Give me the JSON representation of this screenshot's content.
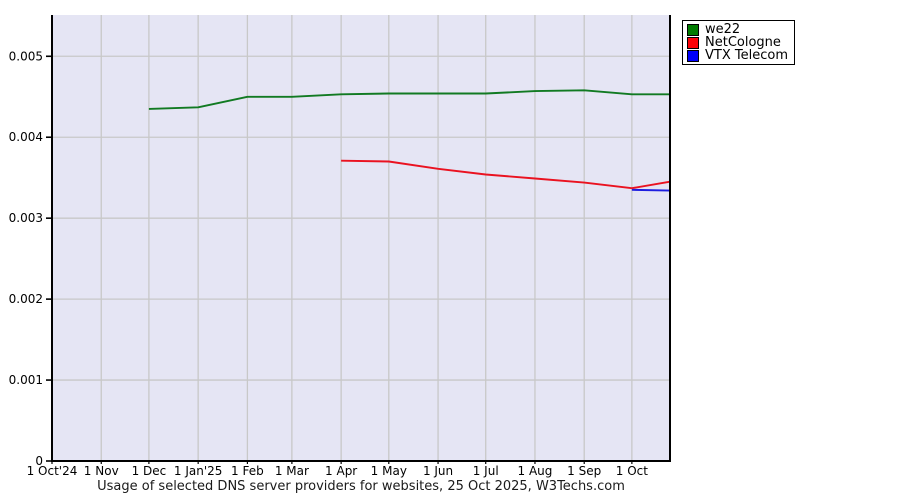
{
  "chart_data": {
    "type": "line",
    "title": "Usage of selected DNS server providers for websites, 25 Oct 2025, W3Techs.com",
    "x_range": [
      "2024-10-01",
      "2025-10-25"
    ],
    "ylim": [
      0,
      0.00551
    ],
    "grid": true,
    "legend_position": "top-right",
    "colors": {
      "plot_bg": "#e5e5f4",
      "gridline": "#c8c8c8",
      "axis": "#000000",
      "outer_bg": "#ffffff"
    },
    "y_ticks": [
      {
        "value": 0,
        "label": "0"
      },
      {
        "value": 0.001,
        "label": "0.001"
      },
      {
        "value": 0.002,
        "label": "0.002"
      },
      {
        "value": 0.003,
        "label": "0.003"
      },
      {
        "value": 0.004,
        "label": "0.004"
      },
      {
        "value": 0.005,
        "label": "0.005"
      }
    ],
    "x_ticks": [
      {
        "date": "2024-10-01",
        "label": "1 Oct'24"
      },
      {
        "date": "2024-11-01",
        "label": "1 Nov"
      },
      {
        "date": "2024-12-01",
        "label": "1 Dec"
      },
      {
        "date": "2025-01-01",
        "label": "1 Jan'25"
      },
      {
        "date": "2025-02-01",
        "label": "1 Feb"
      },
      {
        "date": "2025-03-01",
        "label": "1 Mar"
      },
      {
        "date": "2025-04-01",
        "label": "1 Apr"
      },
      {
        "date": "2025-05-01",
        "label": "1 May"
      },
      {
        "date": "2025-06-01",
        "label": "1 Jun"
      },
      {
        "date": "2025-07-01",
        "label": "1 Jul"
      },
      {
        "date": "2025-08-01",
        "label": "1 Aug"
      },
      {
        "date": "2025-09-01",
        "label": "1 Sep"
      },
      {
        "date": "2025-10-01",
        "label": "1 Oct"
      }
    ],
    "series": [
      {
        "name": "we22",
        "color": "#117a22",
        "swatch": "#007c00",
        "points": [
          [
            "2024-12-01",
            0.00435
          ],
          [
            "2025-01-01",
            0.00437
          ],
          [
            "2025-02-01",
            0.0045
          ],
          [
            "2025-03-01",
            0.0045
          ],
          [
            "2025-04-01",
            0.00453
          ],
          [
            "2025-05-01",
            0.00454
          ],
          [
            "2025-06-01",
            0.00454
          ],
          [
            "2025-07-01",
            0.00454
          ],
          [
            "2025-08-01",
            0.00457
          ],
          [
            "2025-09-01",
            0.00458
          ],
          [
            "2025-10-01",
            0.00453
          ],
          [
            "2025-10-25",
            0.00453
          ]
        ]
      },
      {
        "name": "NetCologne",
        "color": "#ea1220",
        "swatch": "#fb0207",
        "points": [
          [
            "2025-04-01",
            0.00371
          ],
          [
            "2025-05-01",
            0.0037
          ],
          [
            "2025-06-01",
            0.00361
          ],
          [
            "2025-07-01",
            0.00354
          ],
          [
            "2025-08-01",
            0.00349
          ],
          [
            "2025-09-01",
            0.00344
          ],
          [
            "2025-10-01",
            0.00337
          ],
          [
            "2025-10-25",
            0.00345
          ]
        ]
      },
      {
        "name": "VTX Telecom",
        "color": "#1d1de0",
        "swatch": "#0000fa",
        "points": [
          [
            "2025-10-01",
            0.00335
          ],
          [
            "2025-10-25",
            0.00334
          ]
        ]
      }
    ]
  }
}
